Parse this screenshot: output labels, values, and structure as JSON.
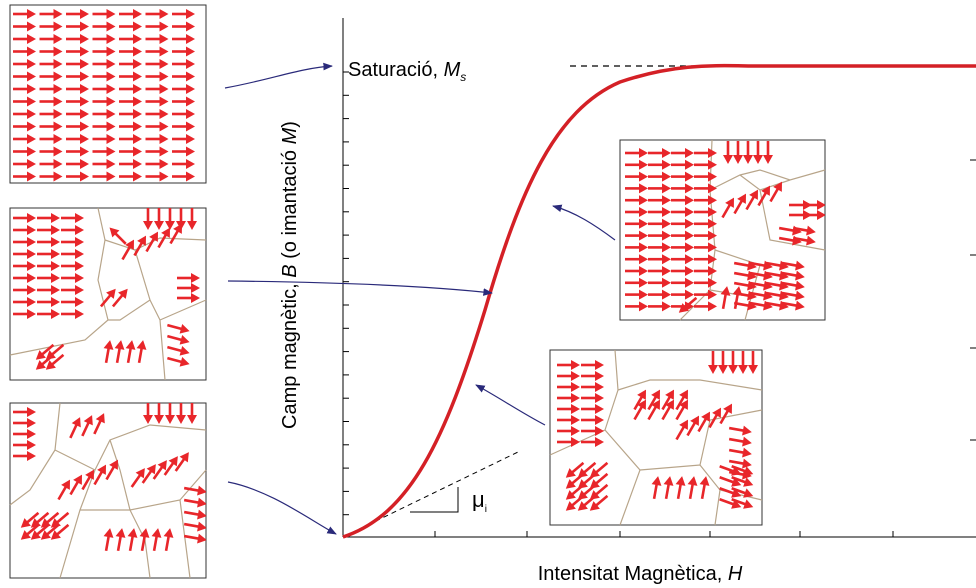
{
  "y_axis_label": {
    "parts": [
      "Camp magnètic, ",
      "B",
      " (o imantació ",
      "M",
      ")"
    ]
  },
  "x_axis_label": {
    "parts": [
      "Intensitat Magnètica, ",
      "H"
    ]
  },
  "saturation_label": {
    "parts": [
      "Saturació, ",
      "M",
      "s"
    ]
  },
  "slope_label": {
    "parts": [
      "μ",
      "i"
    ]
  }
}
